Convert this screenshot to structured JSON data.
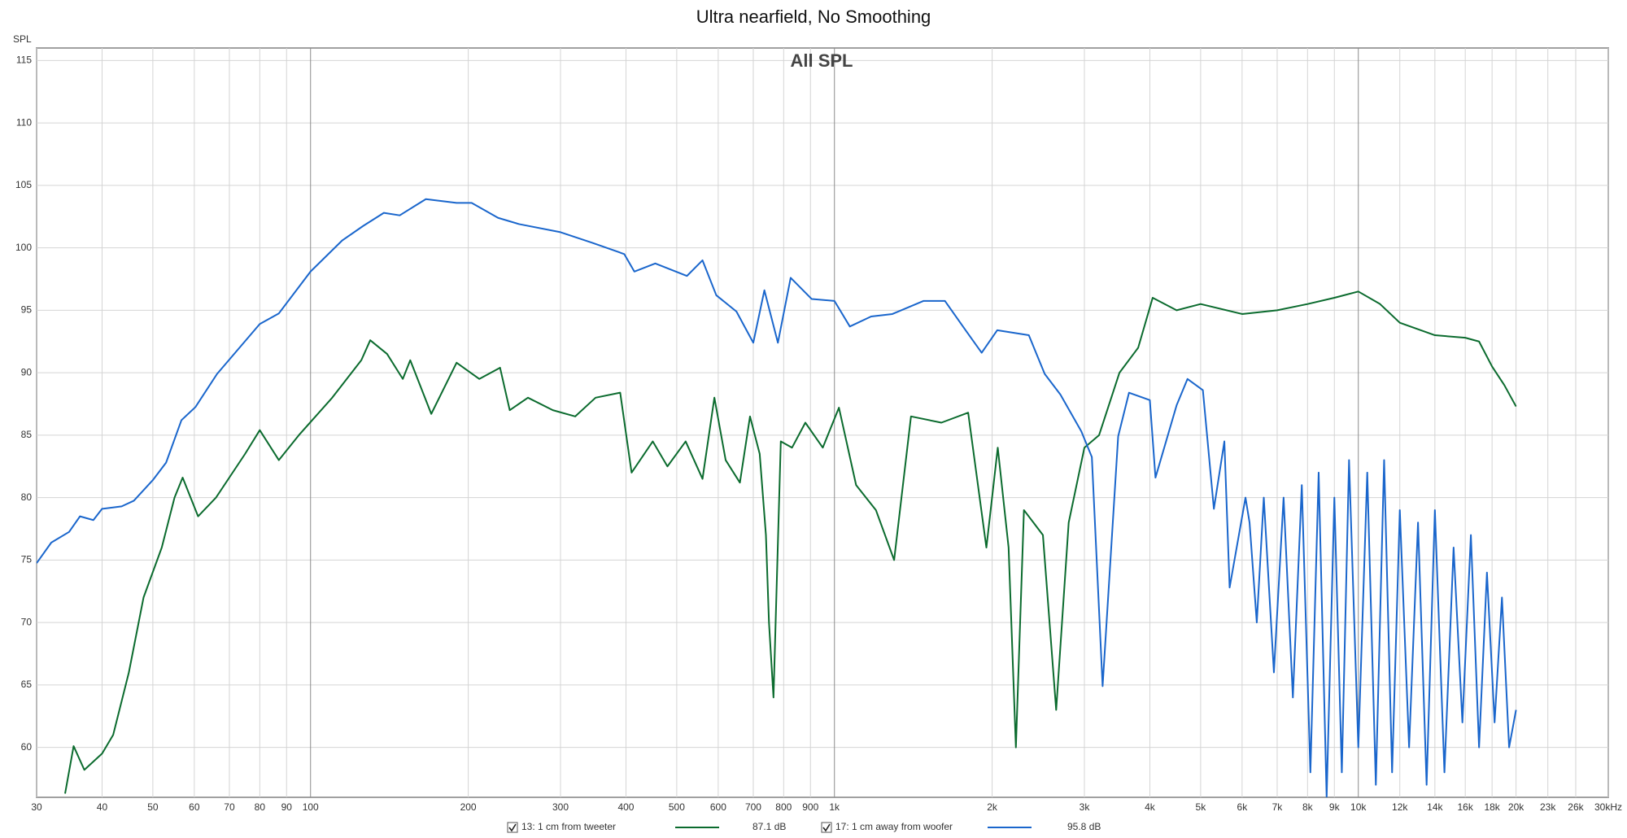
{
  "chart_data": {
    "type": "line",
    "title": "Ultra nearfield, No Smoothing",
    "subtitle": "All SPL",
    "y_label": "SPL",
    "log_x": true,
    "grid": true,
    "xlim": [
      30,
      30000
    ],
    "ylim": [
      56,
      116
    ],
    "yticks": [
      60,
      65,
      70,
      75,
      80,
      85,
      90,
      95,
      100,
      105,
      110,
      115
    ],
    "xticks": [
      30,
      40,
      50,
      60,
      70,
      80,
      90,
      100,
      200,
      300,
      400,
      500,
      600,
      700,
      800,
      900,
      {
        "value": 1000,
        "label": "1k"
      },
      {
        "value": 2000,
        "label": "2k"
      },
      {
        "value": 3000,
        "label": "3k"
      },
      {
        "value": 4000,
        "label": "4k"
      },
      {
        "value": 5000,
        "label": "5k"
      },
      {
        "value": 6000,
        "label": "6k"
      },
      {
        "value": 7000,
        "label": "7k"
      },
      {
        "value": 8000,
        "label": "8k"
      },
      {
        "value": 9000,
        "label": "9k"
      },
      {
        "value": 10000,
        "label": "10k"
      },
      {
        "value": 12000,
        "label": "12k"
      },
      {
        "value": 14000,
        "label": "14k"
      },
      {
        "value": 16000,
        "label": "16k"
      },
      {
        "value": 18000,
        "label": "18k"
      },
      {
        "value": 20000,
        "label": "20k"
      },
      {
        "value": 23000,
        "label": "23k"
      },
      {
        "value": 26000,
        "label": "26k"
      },
      {
        "value": 30000,
        "label": "30kHz"
      }
    ],
    "series": [
      {
        "name": "13: 1 cm from tweeter",
        "level": "87.1 dB",
        "color": "#0b6b2e",
        "x": [
          34,
          35.3,
          37,
          40,
          42,
          45,
          48,
          52,
          55,
          57,
          61,
          66,
          75,
          80,
          87,
          95,
          110,
          125,
          130,
          140,
          150,
          155,
          170,
          190,
          210,
          230,
          240,
          260,
          290,
          320,
          350,
          390,
          410,
          450,
          480,
          520,
          560,
          590,
          620,
          660,
          690,
          720,
          740,
          750,
          765,
          790,
          830,
          880,
          950,
          1020,
          1100,
          1200,
          1300,
          1400,
          1600,
          1800,
          1950,
          2050,
          2150,
          2220,
          2300,
          2500,
          2650,
          2800,
          3000,
          3200,
          3500,
          3800,
          4050,
          4500,
          5000,
          6000,
          7000,
          8000,
          9000,
          10000,
          11000,
          12000,
          14000,
          16000,
          17000,
          18000,
          19000,
          20000
        ],
        "values": [
          56.3,
          60.1,
          58.2,
          59.5,
          61,
          66,
          72,
          76,
          80,
          81.6,
          78.5,
          80,
          83.5,
          85.4,
          83,
          85,
          88,
          91,
          92.6,
          91.5,
          89.5,
          91,
          86.7,
          90.8,
          89.5,
          90.4,
          87,
          88,
          87,
          86.5,
          88,
          88.4,
          82,
          84.5,
          82.5,
          84.5,
          81.5,
          88,
          83,
          81.2,
          86.5,
          83.5,
          77,
          70,
          64,
          84.5,
          84,
          86,
          84,
          87.2,
          81,
          79,
          75,
          86.5,
          86,
          86.8,
          76,
          84,
          76,
          60,
          79,
          77,
          63,
          78,
          84,
          85,
          90,
          92,
          96,
          95,
          95.5,
          94.7,
          95,
          95.5,
          96,
          96.5,
          95.5,
          94,
          93,
          92.8,
          92.5,
          90.5,
          89,
          87.3
        ]
      },
      {
        "name": "17: 1 cm away from woofer",
        "level": "95.8 dB",
        "color": "#1a66cc",
        "x": [
          30,
          32,
          34.6,
          36.3,
          38.5,
          40,
          43.6,
          46,
          50,
          53,
          56.7,
          60.3,
          66.3,
          80,
          87,
          100,
          115,
          126,
          138,
          148,
          166,
          190,
          203,
          228,
          250,
          300,
          345,
          397,
          415,
          455,
          523,
          560,
          595,
          650,
          700,
          735,
          780,
          825,
          905,
          1000,
          1070,
          1175,
          1290,
          1480,
          1625,
          1780,
          1910,
          2045,
          2350,
          2520,
          2700,
          2960,
          3100,
          3250,
          3480,
          3650,
          4000,
          4100,
          4500,
          4720,
          5050,
          5300,
          5550,
          5680,
          6090,
          6200,
          6400,
          6600,
          6900,
          7200,
          7500,
          7800,
          8100,
          8400,
          8700,
          9000,
          9300,
          9600,
          10000,
          10400,
          10800,
          11200,
          11600,
          12000,
          12500,
          13000,
          13500,
          14000,
          14600,
          15200,
          15800,
          16400,
          17000,
          17600,
          18200,
          18800,
          19400,
          20000
        ],
        "values": [
          74.75,
          76.4,
          77.25,
          78.5,
          78.2,
          79.1,
          79.3,
          79.75,
          81.4,
          82.8,
          86.2,
          87.25,
          89.9,
          93.9,
          94.75,
          98.1,
          100.6,
          101.75,
          102.8,
          102.6,
          103.9,
          103.6,
          103.6,
          102.4,
          101.9,
          101.25,
          100.4,
          99.5,
          98.1,
          98.75,
          97.75,
          99,
          96.2,
          94.9,
          92.4,
          96.6,
          92.4,
          97.6,
          95.9,
          95.75,
          93.7,
          94.5,
          94.7,
          95.75,
          95.75,
          93.4,
          91.6,
          93.4,
          93,
          89.9,
          88.25,
          85.3,
          83.25,
          64.9,
          84.9,
          88.4,
          87.8,
          81.6,
          87.4,
          89.5,
          88.6,
          79.1,
          84.5,
          72.8,
          80,
          78,
          70,
          80,
          66,
          80,
          64,
          81,
          58,
          82,
          56,
          80,
          58,
          83,
          60,
          82,
          57,
          83,
          58,
          79,
          60,
          78,
          57,
          79,
          58,
          76,
          62,
          77,
          60,
          74,
          62,
          72,
          60,
          63
        ]
      }
    ]
  }
}
